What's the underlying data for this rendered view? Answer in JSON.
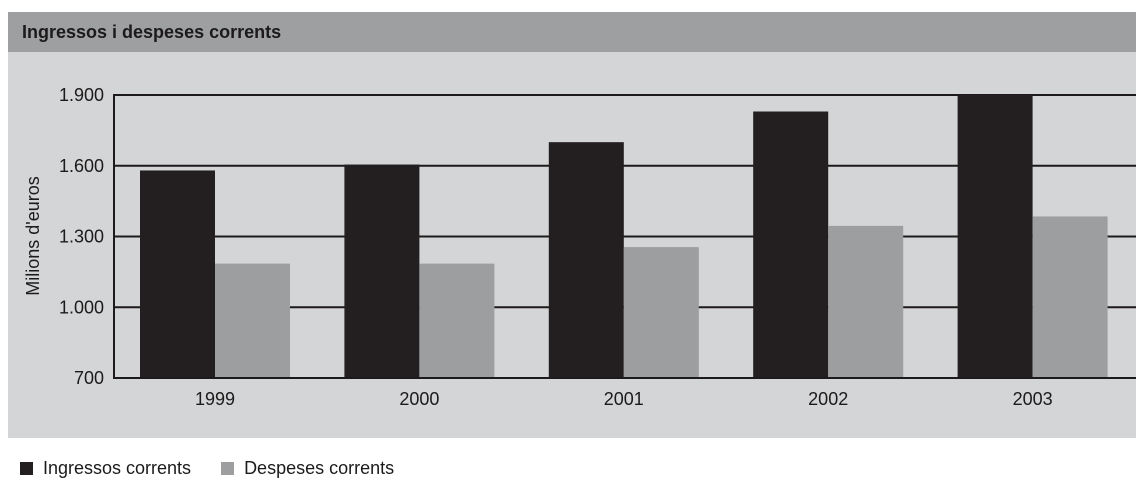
{
  "chart_data": {
    "type": "bar",
    "title": "Ingressos i despeses corrents",
    "ylabel": "Milions d'euros",
    "xlabel": "",
    "categories": [
      "1999",
      "2000",
      "2001",
      "2002",
      "2003"
    ],
    "series": [
      {
        "name": "Ingressos corrents",
        "color": "#231f20",
        "values": [
          1580,
          1605,
          1700,
          1830,
          1900
        ]
      },
      {
        "name": "Despeses corrents",
        "color": "#9d9e9f",
        "values": [
          1185,
          1185,
          1255,
          1345,
          1385
        ]
      }
    ],
    "ylim": [
      700,
      1900
    ],
    "yticks": [
      700,
      1000,
      1300,
      1600,
      1900
    ],
    "ytick_labels": [
      "700",
      "1.000",
      "1.300",
      "1.600",
      "1.900"
    ],
    "grid": true,
    "legend": "bottom-left"
  }
}
